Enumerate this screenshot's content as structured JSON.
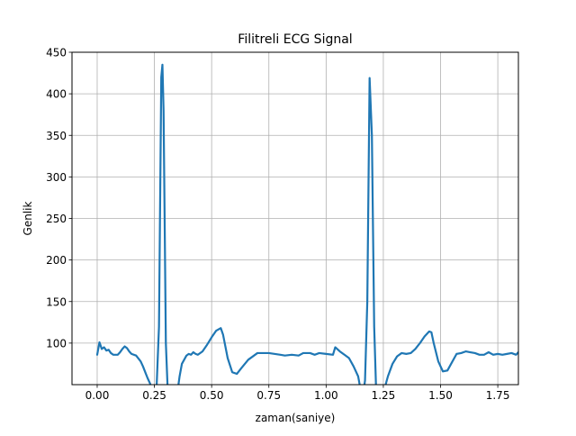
{
  "chart_data": {
    "type": "line",
    "title": "Filitreli ECG Signal",
    "xlabel": "zaman(saniye)",
    "ylabel": "Genlik",
    "xlim": [
      -0.11,
      1.84
    ],
    "ylim": [
      50,
      450
    ],
    "xticks": [
      0.0,
      0.25,
      0.5,
      0.75,
      1.0,
      1.25,
      1.5,
      1.75
    ],
    "xtick_labels": [
      "0.00",
      "0.25",
      "0.50",
      "0.75",
      "1.00",
      "1.25",
      "1.50",
      "1.75"
    ],
    "yticks": [
      100,
      150,
      200,
      250,
      300,
      350,
      400,
      450
    ],
    "ytick_labels": [
      "100",
      "150",
      "200",
      "250",
      "300",
      "350",
      "400",
      "450"
    ],
    "grid": true,
    "series": [
      {
        "color": "#1f77b4",
        "x": [
          0.0,
          0.01,
          0.02,
          0.03,
          0.04,
          0.05,
          0.06,
          0.07,
          0.08,
          0.09,
          0.1,
          0.11,
          0.12,
          0.13,
          0.14,
          0.15,
          0.17,
          0.19,
          0.2,
          0.21,
          0.22,
          0.23,
          0.24,
          0.25,
          0.26,
          0.27,
          0.28,
          0.285,
          0.29,
          0.3,
          0.31,
          0.32,
          0.33,
          0.35,
          0.36,
          0.37,
          0.38,
          0.39,
          0.4,
          0.41,
          0.42,
          0.43,
          0.44,
          0.46,
          0.48,
          0.5,
          0.52,
          0.54,
          0.55,
          0.57,
          0.59,
          0.61,
          0.63,
          0.66,
          0.7,
          0.75,
          0.8,
          0.82,
          0.85,
          0.88,
          0.9,
          0.93,
          0.95,
          0.97,
          1.0,
          1.03,
          1.04,
          1.06,
          1.08,
          1.1,
          1.12,
          1.14,
          1.15,
          1.16,
          1.17,
          1.18,
          1.19,
          1.2,
          1.21,
          1.22,
          1.23,
          1.24,
          1.25,
          1.27,
          1.29,
          1.31,
          1.33,
          1.35,
          1.37,
          1.39,
          1.41,
          1.43,
          1.45,
          1.46,
          1.47,
          1.49,
          1.51,
          1.53,
          1.55,
          1.57,
          1.59,
          1.61,
          1.63,
          1.65,
          1.67,
          1.69,
          1.71,
          1.73,
          1.75,
          1.77,
          1.79,
          1.81,
          1.83,
          1.84
        ],
        "y": [
          86,
          101,
          93,
          95,
          91,
          92,
          88,
          86,
          86,
          86,
          89,
          93,
          96,
          94,
          90,
          87,
          85,
          78,
          72,
          65,
          58,
          52,
          45,
          40,
          50,
          120,
          420,
          435,
          380,
          100,
          30,
          15,
          5,
          40,
          60,
          75,
          80,
          85,
          87,
          86,
          89,
          87,
          86,
          90,
          98,
          107,
          115,
          118,
          110,
          82,
          65,
          63,
          70,
          80,
          88,
          88,
          86,
          85,
          86,
          85,
          88,
          88,
          86,
          88,
          87,
          86,
          95,
          90,
          86,
          82,
          72,
          60,
          45,
          35,
          55,
          150,
          419,
          350,
          120,
          30,
          10,
          20,
          40,
          60,
          75,
          84,
          88,
          87,
          88,
          93,
          100,
          108,
          114,
          113,
          100,
          78,
          66,
          67,
          77,
          87,
          88,
          90,
          89,
          88,
          86,
          86,
          89,
          86,
          87,
          86,
          87,
          88,
          86,
          89
        ]
      }
    ]
  }
}
